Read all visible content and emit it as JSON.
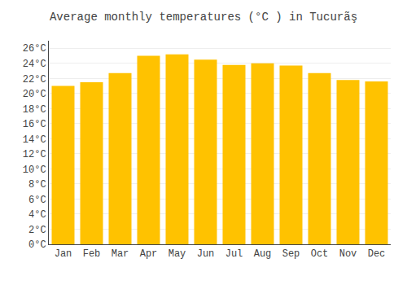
{
  "chart_data": {
    "type": "bar",
    "title": "Average monthly temperatures (°C ) in Tucurãş",
    "categories": [
      "Jan",
      "Feb",
      "Mar",
      "Apr",
      "May",
      "Jun",
      "Jul",
      "Aug",
      "Sep",
      "Oct",
      "Nov",
      "Dec"
    ],
    "values": [
      21.0,
      21.5,
      22.7,
      25.0,
      25.2,
      24.5,
      23.8,
      24.0,
      23.7,
      22.7,
      21.8,
      21.6
    ],
    "color": "#FFC200",
    "ylim": [
      0,
      27
    ],
    "yticks": [
      {
        "value": 0,
        "label": "0°C"
      },
      {
        "value": 2,
        "label": "2°C"
      },
      {
        "value": 4,
        "label": "4°C"
      },
      {
        "value": 6,
        "label": "6°C"
      },
      {
        "value": 8,
        "label": "8°C"
      },
      {
        "value": 10,
        "label": "10°C"
      },
      {
        "value": 12,
        "label": "12°C"
      },
      {
        "value": 14,
        "label": "14°C"
      },
      {
        "value": 16,
        "label": "16°C"
      },
      {
        "value": 18,
        "label": "18°C"
      },
      {
        "value": 20,
        "label": "20°C"
      },
      {
        "value": 22,
        "label": "22°C"
      },
      {
        "value": 24,
        "label": "24°C"
      },
      {
        "value": 26,
        "label": "26°C"
      }
    ],
    "grid": true
  }
}
